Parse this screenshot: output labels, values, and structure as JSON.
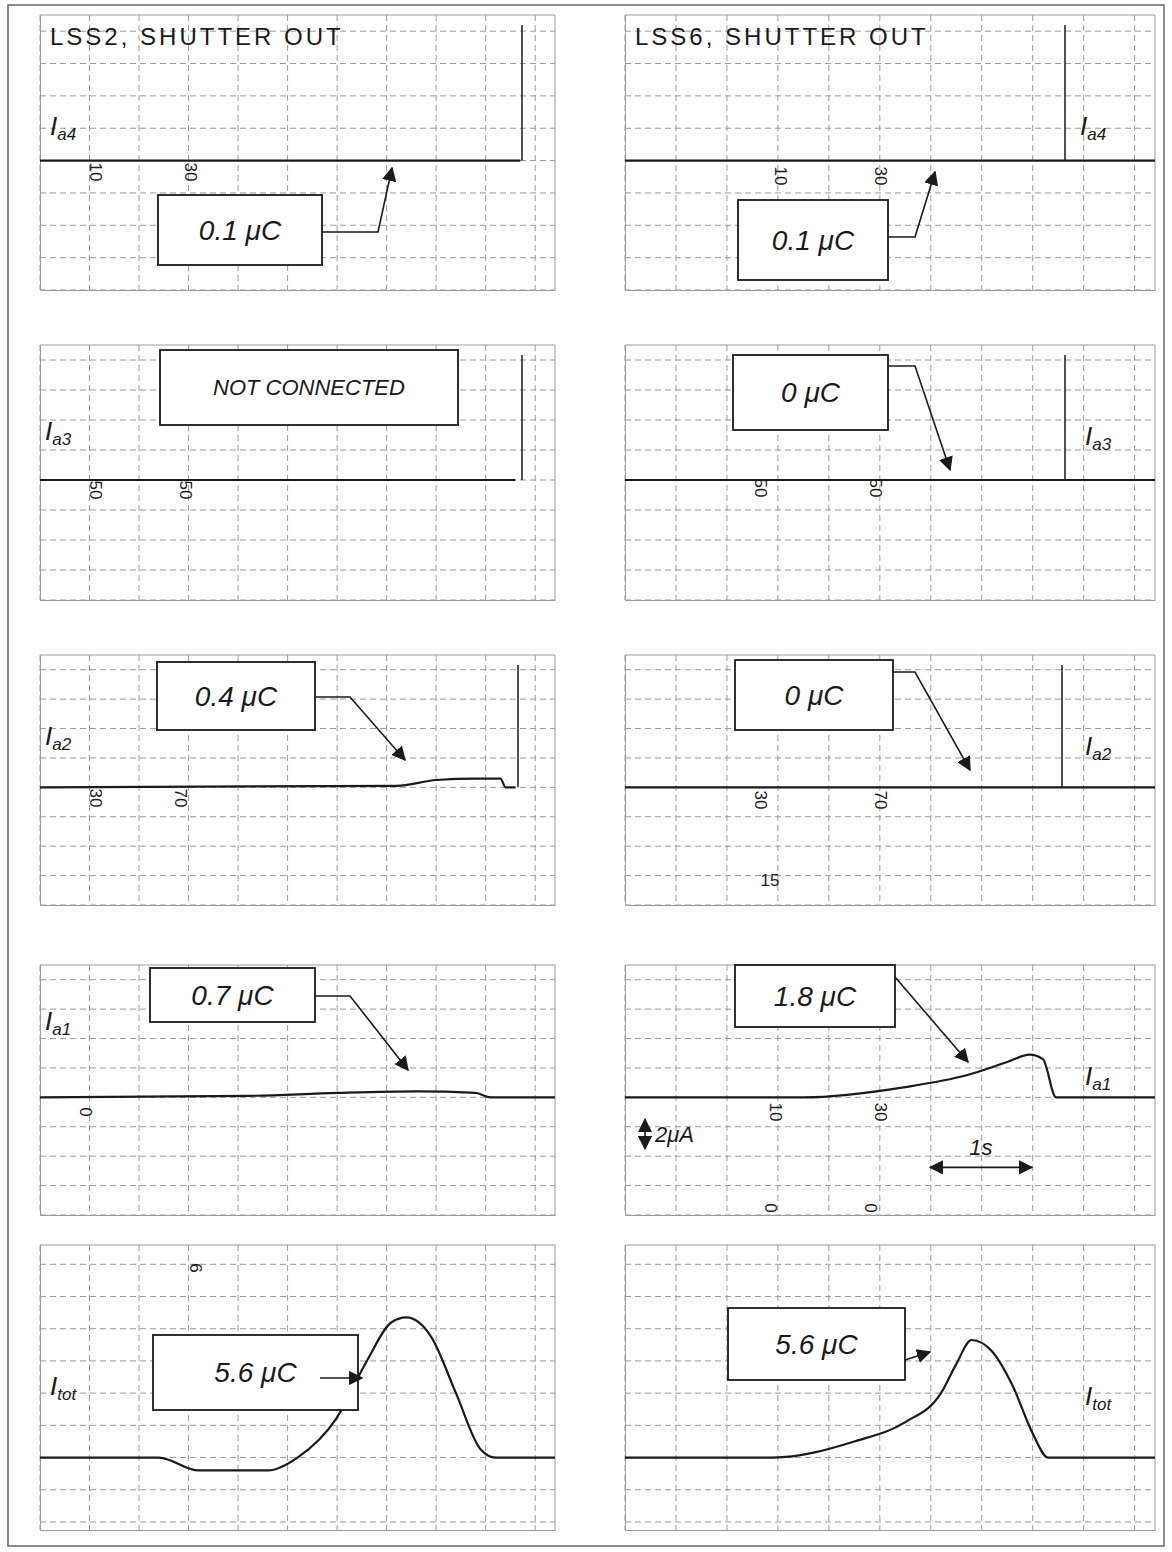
{
  "chart_data": [
    {
      "type": "line",
      "title": "LSS2, SHUTTER OUT",
      "label": "Ia4",
      "annotation": "0.1 μC",
      "paper_marks": [
        "10",
        "30"
      ],
      "x": [
        0,
        4.85
      ],
      "values": [
        0,
        0
      ],
      "color": "#1a1a1a",
      "xlim": [
        0,
        5.2
      ],
      "ylim": [
        -8,
        9
      ],
      "xticks": [
        0,
        0.5,
        1,
        1.5,
        2,
        2.5,
        3,
        3.5,
        4,
        4.5,
        5
      ],
      "yticks": [
        -8,
        -6,
        -4,
        -2,
        0,
        2,
        4,
        6,
        8
      ],
      "grid": true,
      "tick_labels": false
    },
    {
      "type": "line",
      "label": "Ia3",
      "annotation": "NOT CONNECTED",
      "paper_marks": [
        "50",
        "50"
      ],
      "x": [
        0,
        4.8
      ],
      "values": [
        0,
        0
      ],
      "color": "#1a1a1a",
      "xlim": [
        0,
        5.2
      ],
      "ylim": [
        -8,
        9
      ],
      "xticks": [
        0,
        0.5,
        1,
        1.5,
        2,
        2.5,
        3,
        3.5,
        4,
        4.5,
        5
      ],
      "yticks": [
        -8,
        -6,
        -4,
        -2,
        0,
        2,
        4,
        6,
        8
      ],
      "grid": true,
      "tick_labels": false
    },
    {
      "type": "line",
      "label": "Ia2",
      "annotation": "0.4 μC",
      "paper_marks": [
        "30",
        "70"
      ],
      "x": [
        0,
        3.6,
        4.0,
        4.4,
        4.65,
        4.7,
        4.8
      ],
      "values": [
        0,
        0.1,
        0.5,
        0.6,
        0.6,
        0,
        0
      ],
      "color": "#1a1a1a",
      "xlim": [
        0,
        5.2
      ],
      "ylim": [
        -8,
        9
      ],
      "xticks": [
        0,
        0.5,
        1,
        1.5,
        2,
        2.5,
        3,
        3.5,
        4,
        4.5,
        5
      ],
      "yticks": [
        -8,
        -6,
        -4,
        -2,
        0,
        2,
        4,
        6,
        8
      ],
      "grid": true,
      "tick_labels": false
    },
    {
      "type": "line",
      "label": "Ia1",
      "annotation": "0.7 μC",
      "paper_marks": [
        "0"
      ],
      "x": [
        0,
        2.1,
        3.0,
        3.8,
        4.4,
        4.55,
        5.2
      ],
      "values": [
        0,
        0.1,
        0.3,
        0.4,
        0.3,
        0,
        0
      ],
      "color": "#1a1a1a",
      "xlim": [
        0,
        5.2
      ],
      "ylim": [
        -8,
        9
      ],
      "xticks": [
        0,
        0.5,
        1,
        1.5,
        2,
        2.5,
        3,
        3.5,
        4,
        4.5,
        5
      ],
      "yticks": [
        -8,
        -6,
        -4,
        -2,
        0,
        2,
        4,
        6,
        8
      ],
      "grid": true,
      "tick_labels": false
    },
    {
      "type": "line",
      "label": "Itot",
      "annotation": "5.6 μC",
      "paper_marks": [
        "6"
      ],
      "x": [
        0,
        1.2,
        1.6,
        2.3,
        2.6,
        3.0,
        3.3,
        3.55,
        3.7,
        3.95,
        4.2,
        4.45,
        4.6,
        5.2
      ],
      "values": [
        0,
        0,
        -0.8,
        -0.8,
        0,
        2.5,
        6,
        8.4,
        8.7,
        7.5,
        4,
        0.5,
        0,
        0
      ],
      "color": "#1a1a1a",
      "xlim": [
        0,
        5.2
      ],
      "ylim": [
        -4.5,
        13.2
      ],
      "xticks": [
        0,
        0.5,
        1,
        1.5,
        2,
        2.5,
        3,
        3.5,
        4,
        4.5,
        5
      ],
      "yticks": [
        -4,
        -2,
        0,
        2,
        4,
        6,
        8,
        10,
        12
      ],
      "grid": true,
      "tick_labels": false
    },
    {
      "type": "line",
      "title": "LSS6, SHUTTER OUT",
      "label": "Ia4",
      "annotation": "0.1 μC",
      "paper_marks": [
        "10",
        "30"
      ],
      "x": [
        0,
        5.2
      ],
      "values": [
        0,
        0
      ],
      "color": "#1a1a1a",
      "xlim": [
        0,
        5.2
      ],
      "ylim": [
        -8,
        9
      ],
      "xticks": [
        0,
        0.5,
        1,
        1.5,
        2,
        2.5,
        3,
        3.5,
        4,
        4.5,
        5
      ],
      "yticks": [
        -8,
        -6,
        -4,
        -2,
        0,
        2,
        4,
        6,
        8
      ],
      "grid": true,
      "tick_labels": false
    },
    {
      "type": "line",
      "label": "Ia3",
      "annotation": "0 μC",
      "paper_marks": [
        "50",
        "50"
      ],
      "x": [
        0,
        5.2
      ],
      "values": [
        0,
        0
      ],
      "color": "#1a1a1a",
      "xlim": [
        0,
        5.2
      ],
      "ylim": [
        -8,
        9
      ],
      "xticks": [
        0,
        0.5,
        1,
        1.5,
        2,
        2.5,
        3,
        3.5,
        4,
        4.5,
        5
      ],
      "yticks": [
        -8,
        -6,
        -4,
        -2,
        0,
        2,
        4,
        6,
        8
      ],
      "grid": true,
      "tick_labels": false
    },
    {
      "type": "line",
      "label": "Ia2",
      "annotation": "0 μC",
      "paper_marks": [
        "30",
        "70",
        "15"
      ],
      "x": [
        0,
        5.2
      ],
      "values": [
        0,
        0
      ],
      "color": "#1a1a1a",
      "xlim": [
        0,
        5.2
      ],
      "ylim": [
        -8,
        9
      ],
      "xticks": [
        0,
        0.5,
        1,
        1.5,
        2,
        2.5,
        3,
        3.5,
        4,
        4.5,
        5
      ],
      "yticks": [
        -8,
        -6,
        -4,
        -2,
        0,
        2,
        4,
        6,
        8
      ],
      "grid": true,
      "tick_labels": false
    },
    {
      "type": "line",
      "label": "Ia1",
      "annotation": "1.8 μC",
      "paper_marks": [
        "10",
        "30",
        "0",
        "0"
      ],
      "scale_bars": [
        {
          "label": "2μA",
          "value": 2,
          "axis": "y"
        },
        {
          "label": "1s",
          "value": 1,
          "axis": "x"
        }
      ],
      "x": [
        0,
        1.75,
        2.75,
        3.35,
        3.75,
        3.97,
        4.1,
        4.23,
        5.2
      ],
      "values": [
        0,
        0,
        0.7,
        1.5,
        2.4,
        2.9,
        2.6,
        0,
        0
      ],
      "color": "#1a1a1a",
      "xlim": [
        0,
        5.2
      ],
      "ylim": [
        -8,
        9
      ],
      "xticks": [
        0,
        0.5,
        1,
        1.5,
        2,
        2.5,
        3,
        3.5,
        4,
        4.5,
        5
      ],
      "yticks": [
        -8,
        -6,
        -4,
        -2,
        0,
        2,
        4,
        6,
        8
      ],
      "grid": true,
      "tick_labels": false
    },
    {
      "type": "line",
      "label": "Itot",
      "annotation": "5.6 μC",
      "paper_marks": [],
      "x": [
        0,
        1.45,
        2.25,
        2.75,
        3.1,
        3.25,
        3.4,
        3.6,
        3.8,
        4.0,
        4.15,
        5.2
      ],
      "values": [
        0,
        0,
        1.0,
        2.2,
        4.0,
        5.8,
        7.3,
        6.6,
        4.5,
        1.5,
        0,
        0
      ],
      "color": "#1a1a1a",
      "xlim": [
        0,
        5.2
      ],
      "ylim": [
        -4.5,
        13.2
      ],
      "xticks": [
        0,
        0.5,
        1,
        1.5,
        2,
        2.5,
        3,
        3.5,
        4,
        4.5,
        5
      ],
      "yticks": [
        -4,
        -2,
        0,
        2,
        4,
        6,
        8,
        10,
        12
      ],
      "grid": true,
      "tick_labels": false
    }
  ]
}
